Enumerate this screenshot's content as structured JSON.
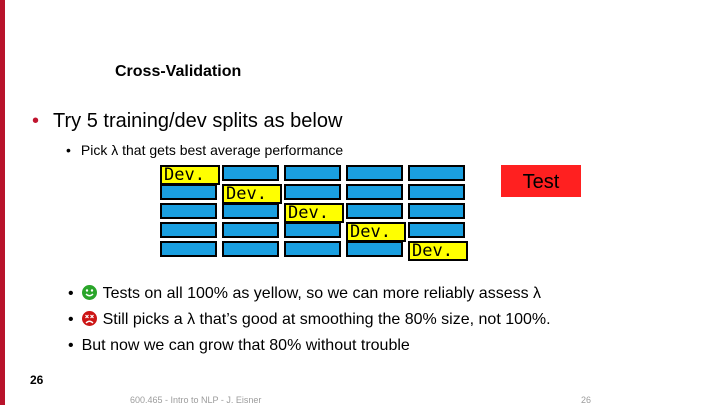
{
  "slide": {
    "title": "Cross-Validation",
    "bullet1": "Try 5 training/dev splits as below",
    "bullet2": "Pick λ that gets best average performance",
    "dev_label": "Dev.",
    "test_label": "Test",
    "points": [
      "Tests on all 100% as yellow, so we can more reliably assess λ",
      "Still picks a λ that’s good at smoothing the 80% size, not 100%.",
      "But now we can grow that 80% without trouble"
    ],
    "page_number": "26",
    "footer": "600.465 - Intro to NLP - J. Eisner",
    "footer_number": "26"
  },
  "colors": {
    "accent": "#b8132b",
    "training": "#1a9fe0",
    "dev": "#ffff00",
    "test": "#ff2020"
  }
}
